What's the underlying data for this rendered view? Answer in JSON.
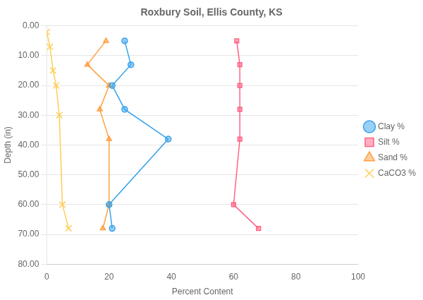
{
  "chart_data": {
    "type": "line",
    "title": "Roxbury Soil, Ellis County, KS",
    "xlabel": "Percent Content",
    "ylabel": "Depth (in)",
    "xlim": [
      0,
      100
    ],
    "ylim": [
      80,
      0
    ],
    "xticks": [
      0,
      20,
      40,
      60,
      80,
      100
    ],
    "yticks": [
      {
        "value": 0,
        "label": "0.00"
      },
      {
        "value": 10,
        "label": "10.00"
      },
      {
        "value": 20,
        "label": "20.00"
      },
      {
        "value": 30,
        "label": "30.00"
      },
      {
        "value": 40,
        "label": "40.00"
      },
      {
        "value": 50,
        "label": "50.00"
      },
      {
        "value": 60,
        "label": "60.00"
      },
      {
        "value": 70,
        "label": "70.00"
      },
      {
        "value": 80,
        "label": "80.00"
      }
    ],
    "grid": "y",
    "legend": "right",
    "series": [
      {
        "name": "Clay %",
        "marker": "circle",
        "x": [
          25,
          27,
          21,
          25,
          39,
          20,
          21
        ],
        "values": [
          5,
          13,
          20,
          28,
          38,
          60,
          68
        ]
      },
      {
        "name": "Silt %",
        "marker": "square",
        "x": [
          61,
          62,
          62,
          62,
          62,
          60,
          68
        ],
        "values": [
          5,
          13,
          20,
          28,
          38,
          60,
          68
        ]
      },
      {
        "name": "Sand %",
        "marker": "triangle",
        "x": [
          19,
          13,
          20,
          17,
          20,
          20,
          18
        ],
        "values": [
          5,
          13,
          20,
          28,
          38,
          60,
          68
        ]
      },
      {
        "name": "CaCO3 %",
        "marker": "x",
        "x": [
          0,
          1,
          2,
          3,
          4,
          5,
          7
        ],
        "values": [
          2,
          7,
          15,
          20,
          30,
          60,
          68
        ]
      }
    ]
  }
}
